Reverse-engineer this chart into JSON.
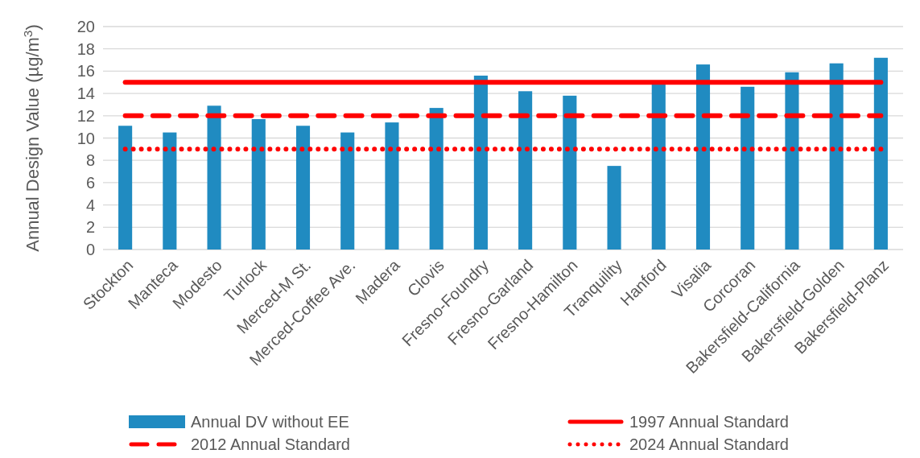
{
  "chart_data": {
    "type": "bar",
    "ylabel": "Annual Design Value (µg/m$^{3}$)",
    "categories": [
      "Stockton",
      "Manteca",
      "Modesto",
      "Turlock",
      "Merced-M St.",
      "Merced-Coffee Ave.",
      "Madera",
      "Clovis",
      "Fresno-Foundry",
      "Fresno-Garland",
      "Fresno-Hamilton",
      "Tranquility",
      "Hanford",
      "Visalia",
      "Corcoran",
      "Bakersfield-California",
      "Bakersfield-Golden",
      "Bakersfield-Planz"
    ],
    "series": [
      {
        "name": "Annual DV without EE",
        "color": "#208bc1",
        "values": [
          11.1,
          10.5,
          12.9,
          11.7,
          11.1,
          10.5,
          11.4,
          12.7,
          15.6,
          14.2,
          13.8,
          7.5,
          14.8,
          16.6,
          14.6,
          15.9,
          16.7,
          17.2
        ]
      },
      {
        "name": "1997 Annual Standard",
        "type": "line",
        "color": "#ff0000",
        "line_style": "solid",
        "values": [
          15,
          15,
          15,
          15,
          15,
          15,
          15,
          15,
          15,
          15,
          15,
          15,
          15,
          15,
          15,
          15,
          15,
          15
        ]
      },
      {
        "name": "2012 Annual Standard",
        "type": "line",
        "color": "#ff0000",
        "line_style": "dashed",
        "values": [
          12,
          12,
          12,
          12,
          12,
          12,
          12,
          12,
          12,
          12,
          12,
          12,
          12,
          12,
          12,
          12,
          12,
          12
        ]
      },
      {
        "name": "2024 Annual Standard",
        "type": "line",
        "color": "#ff0000",
        "line_style": "dotted",
        "values": [
          9,
          9,
          9,
          9,
          9,
          9,
          9,
          9,
          9,
          9,
          9,
          9,
          9,
          9,
          9,
          9,
          9,
          9
        ]
      }
    ],
    "ylim": [
      0,
      20
    ],
    "yticks": [
      0,
      2,
      4,
      6,
      8,
      10,
      12,
      14,
      16,
      18,
      20
    ],
    "grid": "y",
    "legend": "bottom"
  }
}
